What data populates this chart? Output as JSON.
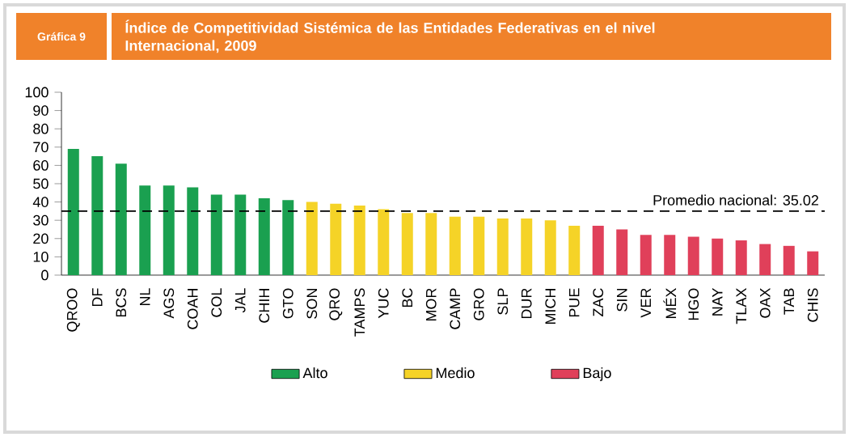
{
  "chart_data": {
    "type": "bar",
    "title": "Índice de Competitividad Sistémica de las Entidades Federativas en el nivel Internacional, 2009",
    "subtitle": "Gráfica 9",
    "categories": [
      "QROO",
      "DF",
      "BCS",
      "NL",
      "AGS",
      "COAH",
      "COL",
      "JAL",
      "CHIH",
      "GTO",
      "SON",
      "QRO",
      "TAMPS",
      "YUC",
      "BC",
      "MOR",
      "CAMP",
      "GRO",
      "SLP",
      "DUR",
      "MICH",
      "PUE",
      "ZAC",
      "SIN",
      "VER",
      "MÉX",
      "HGO",
      "NAY",
      "TLAX",
      "OAX",
      "TAB",
      "CHIS"
    ],
    "series": [
      {
        "name": "Alto",
        "color": "#1aa050",
        "values": [
          69,
          65,
          61,
          49,
          49,
          48,
          44,
          44,
          42,
          41,
          null,
          null,
          null,
          null,
          null,
          null,
          null,
          null,
          null,
          null,
          null,
          null,
          null,
          null,
          null,
          null,
          null,
          null,
          null,
          null,
          null,
          null
        ]
      },
      {
        "name": "Medio",
        "color": "#f5d327",
        "values": [
          null,
          null,
          null,
          null,
          null,
          null,
          null,
          null,
          null,
          null,
          40,
          39,
          38,
          36,
          34,
          34,
          32,
          32,
          31,
          31,
          30,
          27,
          null,
          null,
          null,
          null,
          null,
          null,
          null,
          null,
          null,
          null
        ]
      },
      {
        "name": "Bajo",
        "color": "#e0405a",
        "values": [
          null,
          null,
          null,
          null,
          null,
          null,
          null,
          null,
          null,
          null,
          null,
          null,
          null,
          null,
          null,
          null,
          null,
          null,
          null,
          null,
          null,
          null,
          27,
          25,
          22,
          22,
          21,
          20,
          19,
          17,
          16,
          13
        ]
      }
    ],
    "ylim": [
      0,
      100
    ],
    "yticks": [
      0,
      10,
      20,
      30,
      40,
      50,
      60,
      70,
      80,
      90,
      100
    ],
    "ref_lines": [
      {
        "axis": "y",
        "value": 35.02,
        "label": "Promedio nacional: 35.02",
        "color": "#000000",
        "line_style": "dashed"
      }
    ],
    "legend": "bottom",
    "grid": false
  }
}
